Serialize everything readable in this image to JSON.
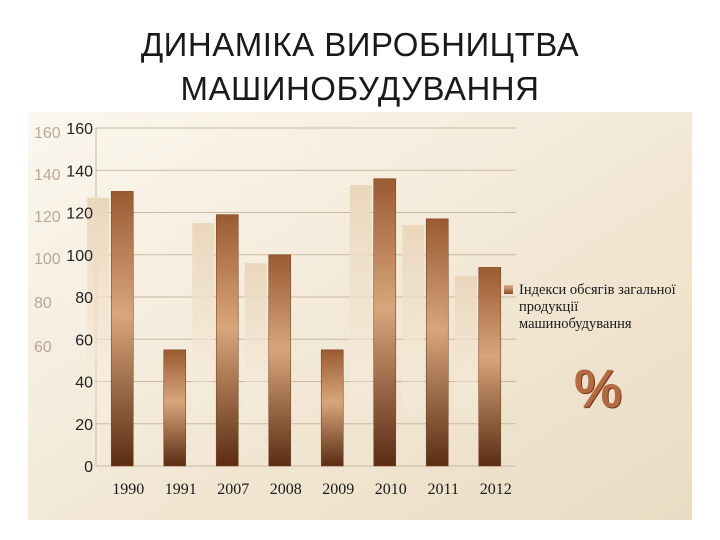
{
  "title_line1": "ДИНАМІКА ВИРОБНИЦТВА",
  "title_line2": "МАШИНОБУДУВАННЯ",
  "percent_sign": "%",
  "colors": {
    "bar_dark": "#5a2c12",
    "bar_mid": "#b8774a",
    "bar_light": "#e8b890",
    "ghost": "#e2cdb0",
    "panel": "#f3ead8"
  },
  "chart_data": {
    "type": "bar",
    "categories": [
      "1990",
      "1991",
      "2007",
      "2008",
      "2009",
      "2010",
      "2011",
      "2012"
    ],
    "series": [
      {
        "name": "Індекси обсягів загальної продукції машинобудування",
        "values": [
          130,
          55,
          119,
          100,
          55,
          136,
          117,
          94
        ]
      }
    ],
    "ghost_values": [
      127,
      null,
      115,
      96,
      null,
      133,
      114,
      90
    ],
    "ylim": [
      0,
      160
    ],
    "yticks": [
      0,
      20,
      40,
      60,
      80,
      100,
      120,
      140,
      160
    ],
    "ghost_yticks": [
      "160",
      "140",
      "120",
      "100",
      "80",
      "60"
    ],
    "grid": true,
    "legend_position": "right"
  }
}
